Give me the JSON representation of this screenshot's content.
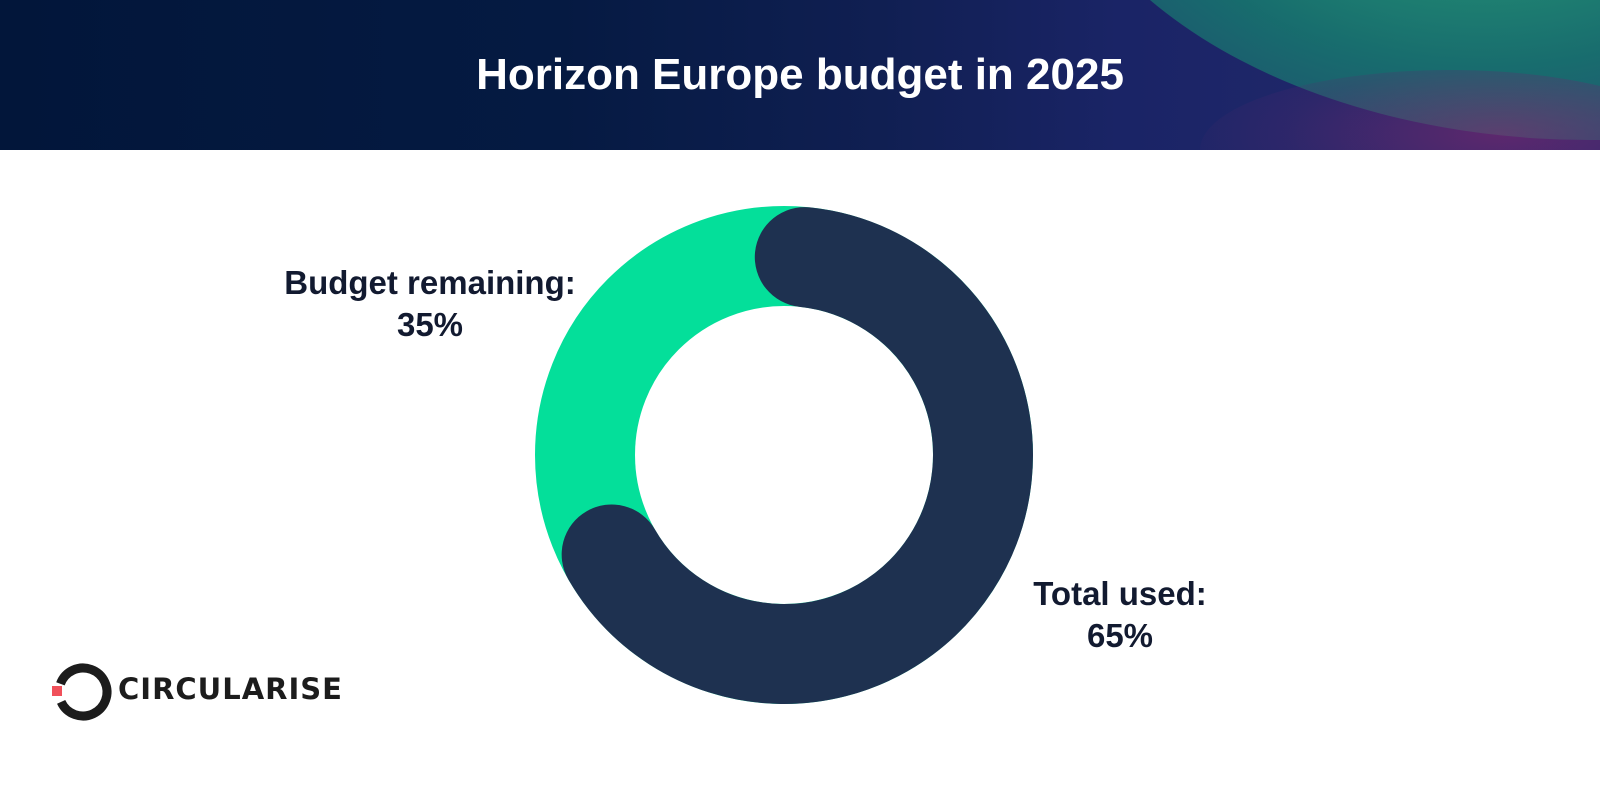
{
  "header": {
    "title": "Horizon Europe budget in 2025"
  },
  "chart_data": {
    "type": "pie",
    "style": "donut",
    "title": "Horizon Europe budget in 2025",
    "slices": [
      {
        "label": "Total used:",
        "value_text": "65%",
        "value": 65,
        "color": "#1e3150"
      },
      {
        "label": "Budget remaining:",
        "value_text": "35%",
        "value": 35,
        "color": "#04df9a"
      }
    ],
    "rounded_caps": true
  },
  "logo": {
    "text": "CIRCULARISE",
    "accent_color": "#f0505a"
  },
  "colors": {
    "header_bg": "#041a3d",
    "title_text": "#ffffff",
    "label_text": "#121a30"
  }
}
